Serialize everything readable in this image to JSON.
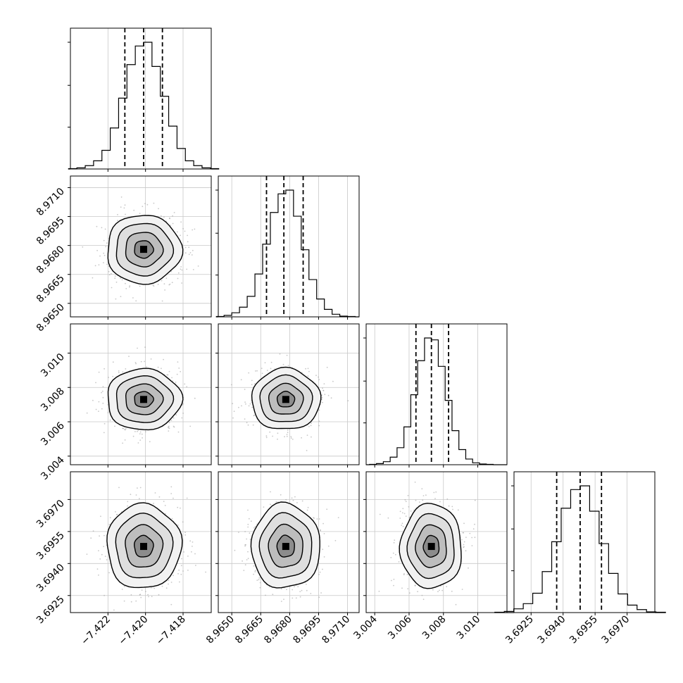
{
  "chart_data": {
    "type": "corner",
    "title": "",
    "grid": true,
    "parameters": [
      {
        "label": "",
        "range": [
          -7.424,
          -7.4165
        ],
        "ticks": [
          -7.422,
          -7.42,
          -7.418
        ],
        "tick_labels": [
          "−7.422",
          "−7.420",
          "−7.418"
        ],
        "mean": -7.4201,
        "std": 0.001,
        "quantiles": [
          -7.4211,
          -7.4201,
          -7.4191
        ],
        "hist_counts": [
          1,
          3,
          9,
          22,
          50,
          110,
          190,
          280,
          330,
          340,
          275,
          195,
          115,
          55,
          22,
          9,
          3,
          1
        ]
      },
      {
        "label": "",
        "range": [
          8.9643,
          8.9716
        ],
        "ticks": [
          8.965,
          8.9665,
          8.968,
          8.9695,
          8.971
        ],
        "tick_labels": [
          "8.9650",
          "8.9665",
          "8.9680",
          "8.9695",
          "8.9710"
        ],
        "mean": 8.9678,
        "std": 0.0009,
        "quantiles": [
          8.9668,
          8.9677,
          8.9687
        ],
        "hist_counts": [
          1,
          4,
          11,
          26,
          55,
          115,
          195,
          280,
          330,
          340,
          270,
          180,
          100,
          48,
          20,
          7,
          2,
          1
        ]
      },
      {
        "label": "",
        "range": [
          3.0035,
          3.0117
        ],
        "ticks": [
          3.004,
          3.006,
          3.008,
          3.01
        ],
        "tick_labels": [
          "3.004",
          "3.006",
          "3.008",
          "3.010"
        ],
        "mean": 3.0073,
        "std": 0.0009,
        "quantiles": [
          3.0064,
          3.0073,
          3.0083
        ],
        "hist_counts": [
          1,
          3,
          8,
          20,
          45,
          100,
          185,
          275,
          335,
          330,
          260,
          170,
          90,
          40,
          15,
          5,
          2,
          1
        ]
      },
      {
        "label": "",
        "range": [
          3.6917,
          3.6983
        ],
        "ticks": [
          3.6925,
          3.694,
          3.6955,
          3.697
        ],
        "tick_labels": [
          "3.6925",
          "3.6940",
          "3.6955",
          "3.6970"
        ],
        "mean": 3.6948,
        "std": 0.001,
        "quantiles": [
          3.6937,
          3.6948,
          3.6958
        ],
        "hist_counts": [
          1,
          3,
          10,
          24,
          52,
          110,
          190,
          280,
          330,
          340,
          272,
          185,
          105,
          50,
          20,
          8,
          2,
          1
        ]
      }
    ],
    "contour_levels": [
      0.12,
      0.39,
      0.68,
      0.86
    ]
  }
}
